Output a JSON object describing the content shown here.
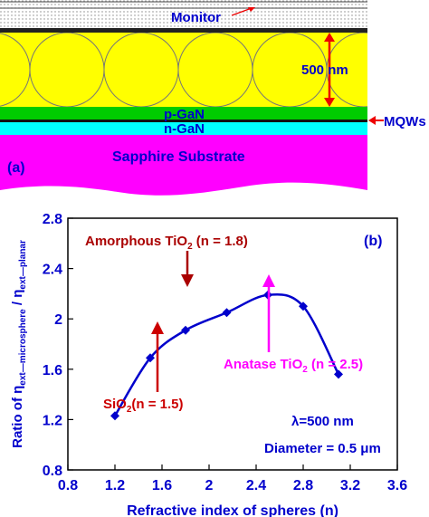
{
  "panel_a": {
    "panel_label": "(a)",
    "layers": {
      "monitor": "Monitor",
      "thickness": "500 nm",
      "p_gan": "p-GaN",
      "n_gan": "n-GaN",
      "mqws": "MQWs",
      "substrate": "Sapphire Substrate"
    },
    "colors": {
      "spheres": "#ffff00",
      "p_gan": "#00cc00",
      "n_gan": "#00ffff",
      "substrate": "#ff00ff",
      "arrows": "#ee0000",
      "text": "#0000cc"
    }
  },
  "chart_data": {
    "type": "line",
    "panel_label": "(b)",
    "xlabel": "Refractive index of spheres (n)",
    "ylabel": {
      "prefix": "Ratio of η",
      "sub1": "ext—microsphere",
      "mid": " / η",
      "sub2": "ext—planar"
    },
    "xlim": [
      0.8,
      3.6
    ],
    "ylim": [
      0.8,
      2.8
    ],
    "x_ticks": [
      "0.8",
      "1.2",
      "1.6",
      "2",
      "2.4",
      "2.8",
      "3.2",
      "3.6"
    ],
    "y_ticks": [
      "0.8",
      "1.2",
      "1.6",
      "2",
      "2.4",
      "2.8"
    ],
    "x_tick_values": [
      0.8,
      1.2,
      1.6,
      2.0,
      2.4,
      2.8,
      3.2,
      3.6
    ],
    "y_tick_values": [
      0.8,
      1.2,
      1.6,
      2.0,
      2.4,
      2.8
    ],
    "grid": false,
    "series": [
      {
        "x": [
          1.2,
          1.5,
          1.8,
          2.15,
          2.5,
          2.8,
          3.1
        ],
        "y": [
          1.23,
          1.69,
          1.91,
          2.05,
          2.19,
          2.1,
          1.56
        ],
        "color": "#0000cc"
      }
    ],
    "annotations": {
      "amorphous": {
        "pre": "Amorphous TiO",
        "sub": "2",
        "post": " (n = 1.8)",
        "color": "#aa0000"
      },
      "anatase": {
        "pre": "Anatase TiO",
        "sub": "2",
        "post": " (n = 2.5)",
        "color": "#ff00ff"
      },
      "sio2": {
        "pre": "SiO",
        "sub": "2",
        "post": "(n = 1.5)",
        "color": "#cc0000"
      },
      "wavelength": "λ=500 nm",
      "diameter": "Diameter = 0.5 μm"
    }
  }
}
